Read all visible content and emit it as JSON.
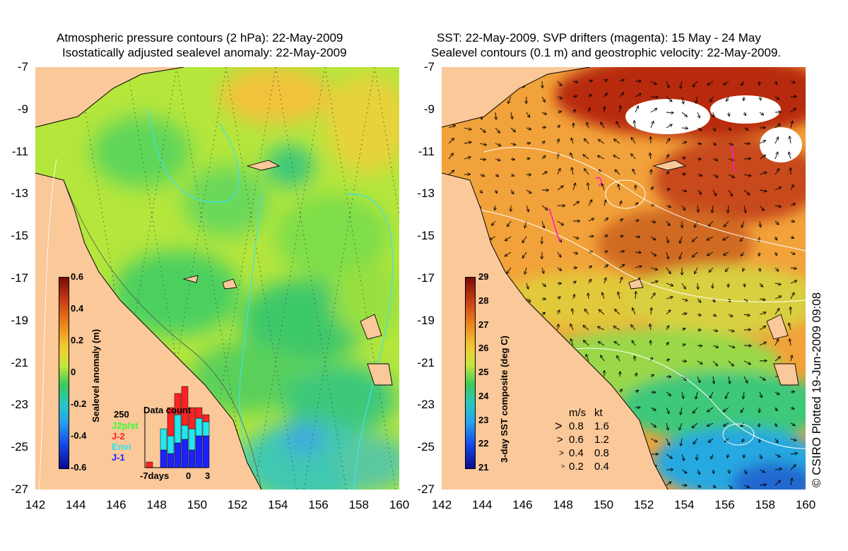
{
  "left_panel": {
    "title_line1": "Atmospheric pressure contours (2 hPa): 22-May-2009",
    "title_line2": "Isostatically adjusted sealevel anomaly: 22-May-2009",
    "colorbar": {
      "label": "Sealevel anomaly (m)",
      "ticks": [
        "0.6",
        "0.4",
        "0.2",
        "0",
        "-0.2",
        "-0.4",
        "-0.6"
      ],
      "range": [
        -0.6,
        0.6
      ]
    },
    "data_count": {
      "title": "Data count",
      "y_label": "250",
      "x_ticks": [
        "-7days",
        "0",
        "3"
      ],
      "legend": [
        {
          "name": "J2p/st",
          "color": "#33ff33"
        },
        {
          "name": "J-2",
          "color": "#ff2222"
        },
        {
          "name": "Envi",
          "color": "#22e6f0"
        },
        {
          "name": "J-1",
          "color": "#1a22ff"
        }
      ]
    }
  },
  "right_panel": {
    "title_line1": "SST: 22-May-2009. SVP drifters (magenta): 15 May - 24 May",
    "title_line2": "Sealevel contours (0.1 m) and geostrophic velocity: 22-May-2009.",
    "colorbar": {
      "label": "3-day SST composite (deg C)",
      "ticks": [
        "29",
        "28",
        "27",
        "26",
        "25",
        "24",
        "23",
        "22",
        "21"
      ],
      "range": [
        21,
        29
      ]
    },
    "velocity_legend": {
      "header_ms": "m/s",
      "header_kt": "kt",
      "rows": [
        {
          "ms": "0.8",
          "kt": "1.6"
        },
        {
          "ms": "0.6",
          "kt": "1.2"
        },
        {
          "ms": "0.4",
          "kt": "0.8"
        },
        {
          "ms": "0.2",
          "kt": "0.4"
        }
      ]
    }
  },
  "axes": {
    "x_ticks": [
      "142",
      "144",
      "146",
      "148",
      "150",
      "152",
      "154",
      "156",
      "158",
      "160"
    ],
    "y_ticks": [
      "-7",
      "-9",
      "-11",
      "-13",
      "-15",
      "-17",
      "-19",
      "-21",
      "-23",
      "-25",
      "-27"
    ]
  },
  "credit": "© CSIRO Plotted 19-Jun-2009 09:08",
  "colors": {
    "land": "#fbc89a",
    "ssta_base": "#b4e63c",
    "sst_base": "#f2a23a"
  }
}
